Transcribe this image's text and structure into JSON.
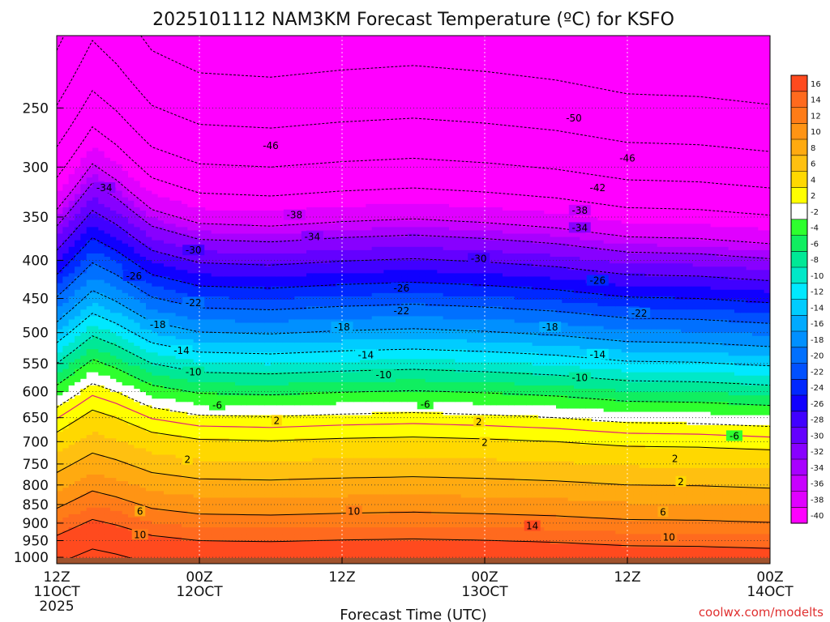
{
  "chart_data": {
    "type": "heatmap",
    "title": "2025101112 NAM3KM Forecast Temperature (ºC) for KSFO",
    "xlabel": "Forecast Time (UTC)",
    "ylabel": "",
    "credit": "coolwx.com/modelts",
    "x_ticks": [
      {
        "hours": 0,
        "l1": "12Z",
        "l2": "11OCT",
        "l3": "2025"
      },
      {
        "hours": 12,
        "l1": "00Z",
        "l2": "12OCT",
        "l3": ""
      },
      {
        "hours": 24,
        "l1": "12Z",
        "l2": "",
        "l3": ""
      },
      {
        "hours": 36,
        "l1": "00Z",
        "l2": "13OCT",
        "l3": ""
      },
      {
        "hours": 48,
        "l1": "12Z",
        "l2": "",
        "l3": ""
      },
      {
        "hours": 60,
        "l1": "00Z",
        "l2": "14OCT",
        "l3": ""
      }
    ],
    "xlim_hours": [
      0,
      60
    ],
    "y_ticks": [
      250,
      300,
      350,
      400,
      450,
      500,
      550,
      600,
      650,
      700,
      750,
      800,
      850,
      900,
      950,
      1000
    ],
    "ylim_hPa": [
      200,
      1020
    ],
    "surface_pressure_hPa": 1002,
    "colorbar_ticks": [
      16,
      14,
      12,
      10,
      8,
      6,
      4,
      2,
      -2,
      -4,
      -6,
      -8,
      -10,
      -12,
      -14,
      -16,
      -18,
      -20,
      -22,
      -24,
      -26,
      -28,
      -30,
      -32,
      -34,
      -36,
      -38,
      -40
    ],
    "colorbar_colors": [
      "#ff4a1e",
      "#ff6a1e",
      "#ff7c18",
      "#ff9414",
      "#ffaa10",
      "#ffc010",
      "#ffd800",
      "#ffff00",
      "#ffffff",
      "#2eff2e",
      "#10ee60",
      "#00e896",
      "#00e8c8",
      "#00e8ff",
      "#00ccff",
      "#00aaff",
      "#0090ff",
      "#0070ff",
      "#0050ff",
      "#0028ff",
      "#1000ff",
      "#4000ff",
      "#6400ff",
      "#8800ff",
      "#a800ff",
      "#c800ff",
      "#e000ff",
      "#ff00ff"
    ],
    "temp_range_C": [
      -56,
      18
    ],
    "anchors": [
      {
        "t": -56,
        "p": 200
      },
      {
        "t": -50,
        "p": 258
      },
      {
        "t": -46,
        "p": 292
      },
      {
        "t": -42,
        "p": 320
      },
      {
        "t": -38,
        "p": 352
      },
      {
        "t": -34,
        "p": 370
      },
      {
        "t": -30,
        "p": 398
      },
      {
        "t": -26,
        "p": 428
      },
      {
        "t": -22,
        "p": 458
      },
      {
        "t": -18,
        "p": 494
      },
      {
        "t": -14,
        "p": 526
      },
      {
        "t": -10,
        "p": 560
      },
      {
        "t": -6,
        "p": 598
      },
      {
        "t": -2,
        "p": 640
      },
      {
        "t": 0,
        "p": 662
      },
      {
        "t": 2,
        "p": 690
      },
      {
        "t": 6,
        "p": 780
      },
      {
        "t": 10,
        "p": 870
      },
      {
        "t": 14,
        "p": 945
      },
      {
        "t": 18,
        "p": 1030
      }
    ],
    "shift_hPa": [
      {
        "hours": 0,
        "dp": -10
      },
      {
        "hours": 3,
        "dp": -55
      },
      {
        "hours": 5,
        "dp": -40
      },
      {
        "hours": 8,
        "dp": -10
      },
      {
        "hours": 12,
        "dp": 5
      },
      {
        "hours": 18,
        "dp": 8
      },
      {
        "hours": 24,
        "dp": 3
      },
      {
        "hours": 30,
        "dp": 0
      },
      {
        "hours": 36,
        "dp": 4
      },
      {
        "hours": 42,
        "dp": 10
      },
      {
        "hours": 48,
        "dp": 20
      },
      {
        "hours": 54,
        "dp": 22
      },
      {
        "hours": 60,
        "dp": 28
      }
    ],
    "contour_labels": [
      {
        "text": "-50",
        "hours": 43.5,
        "hPa": 258
      },
      {
        "text": "-46",
        "hours": 18,
        "hPa": 281
      },
      {
        "text": "-46",
        "hours": 48,
        "hPa": 292
      },
      {
        "text": "-42",
        "hours": 45.5,
        "hPa": 320
      },
      {
        "text": "-34",
        "hours": 4,
        "hPa": 320
      },
      {
        "text": "-38",
        "hours": 20,
        "hPa": 348
      },
      {
        "text": "-38",
        "hours": 44,
        "hPa": 343
      },
      {
        "text": "-34",
        "hours": 21.5,
        "hPa": 372
      },
      {
        "text": "-34",
        "hours": 44,
        "hPa": 362
      },
      {
        "text": "-30",
        "hours": 11.5,
        "hPa": 388
      },
      {
        "text": "-30",
        "hours": 35.5,
        "hPa": 398
      },
      {
        "text": "-26",
        "hours": 6.5,
        "hPa": 420
      },
      {
        "text": "-26",
        "hours": 29,
        "hPa": 436
      },
      {
        "text": "-26",
        "hours": 45.5,
        "hPa": 426
      },
      {
        "text": "-22",
        "hours": 11.5,
        "hPa": 456
      },
      {
        "text": "-22",
        "hours": 29,
        "hPa": 468
      },
      {
        "text": "-22",
        "hours": 49,
        "hPa": 471
      },
      {
        "text": "-18",
        "hours": 8.5,
        "hPa": 488
      },
      {
        "text": "-18",
        "hours": 24,
        "hPa": 492
      },
      {
        "text": "-18",
        "hours": 41.5,
        "hPa": 492
      },
      {
        "text": "-14",
        "hours": 10.5,
        "hPa": 529
      },
      {
        "text": "-14",
        "hours": 26,
        "hPa": 536
      },
      {
        "text": "-14",
        "hours": 45.5,
        "hPa": 535
      },
      {
        "text": "-10",
        "hours": 11.5,
        "hPa": 565
      },
      {
        "text": "-10",
        "hours": 27.5,
        "hPa": 570
      },
      {
        "text": "-10",
        "hours": 44,
        "hPa": 575
      },
      {
        "text": "-6",
        "hours": 13.5,
        "hPa": 626
      },
      {
        "text": "-6",
        "hours": 31,
        "hPa": 624
      },
      {
        "text": "-6",
        "hours": 57,
        "hPa": 688
      },
      {
        "text": "2",
        "hours": 18.5,
        "hPa": 656
      },
      {
        "text": "2",
        "hours": 35.5,
        "hPa": 659
      },
      {
        "text": "2",
        "hours": 11,
        "hPa": 740
      },
      {
        "text": "2",
        "hours": 36,
        "hPa": 702
      },
      {
        "text": "2",
        "hours": 52,
        "hPa": 738
      },
      {
        "text": "2",
        "hours": 52.5,
        "hPa": 792
      },
      {
        "text": "6",
        "hours": 7,
        "hPa": 868
      },
      {
        "text": "6",
        "hours": 51,
        "hPa": 870
      },
      {
        "text": "10",
        "hours": 7,
        "hPa": 933
      },
      {
        "text": "10",
        "hours": 25,
        "hPa": 868
      },
      {
        "text": "10",
        "hours": 51.5,
        "hPa": 940
      },
      {
        "text": "14",
        "hours": 40,
        "hPa": 908
      }
    ]
  }
}
